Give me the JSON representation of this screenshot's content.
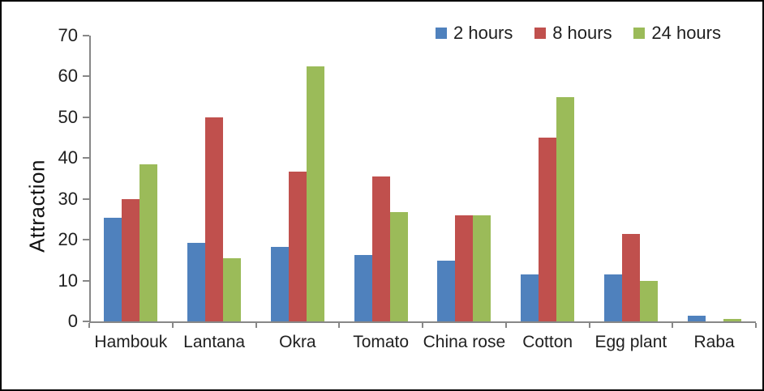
{
  "figure": {
    "background": "#ffffff",
    "border_color": "#000000",
    "axis_color": "#878787",
    "text_color": "#1f1f1f"
  },
  "chart_data": {
    "type": "bar",
    "title": "",
    "xlabel": "",
    "ylabel": "Attraction",
    "ylim": [
      0,
      70
    ],
    "yticks": [
      0,
      10,
      20,
      30,
      40,
      50,
      60,
      70
    ],
    "grid": false,
    "legend_position": "top-right",
    "categories": [
      "Hambouk",
      "Lantana",
      "Okra",
      "Tomato",
      "China rose",
      "Cotton",
      "Egg plant",
      "Raba"
    ],
    "series": [
      {
        "name": "2 hours",
        "color": "#4F81BD",
        "values": [
          25.3,
          19.3,
          18.3,
          16.2,
          14.9,
          11.5,
          11.6,
          1.3
        ]
      },
      {
        "name": "8 hours",
        "color": "#C0504D",
        "values": [
          30.0,
          50.0,
          36.7,
          35.5,
          26.0,
          45.0,
          21.4,
          0.0
        ]
      },
      {
        "name": "24 hours",
        "color": "#9BBB59",
        "values": [
          38.4,
          15.5,
          62.4,
          26.7,
          26.0,
          55.0,
          10.0,
          0.5
        ]
      }
    ]
  }
}
